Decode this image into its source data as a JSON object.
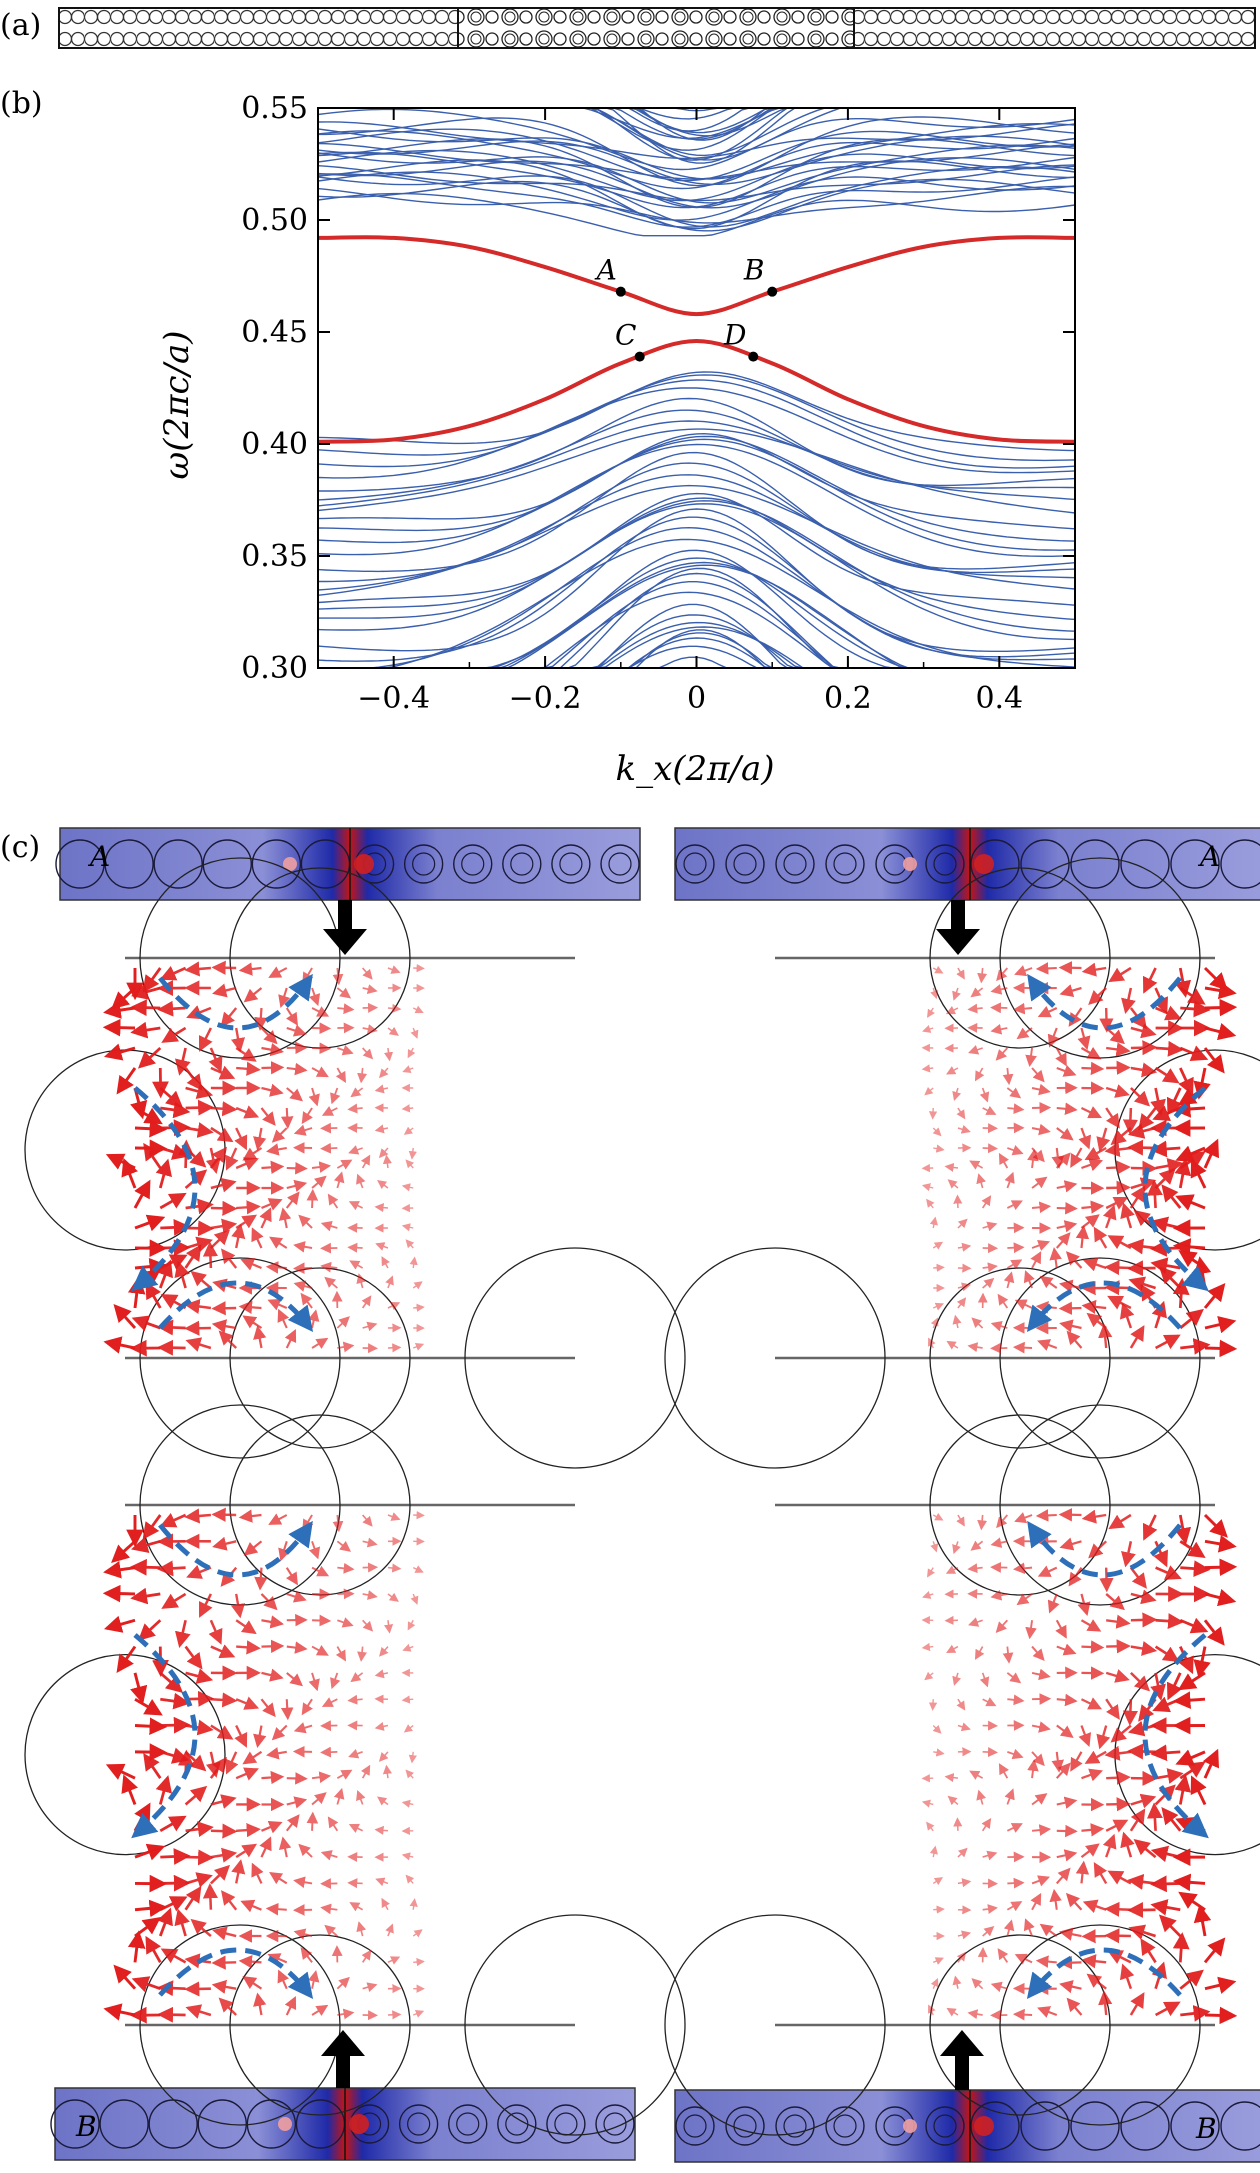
{
  "panels": {
    "a": "(a)",
    "b": "(b)",
    "c": "(c)"
  },
  "chart_data": {
    "type": "line",
    "xlabel": "k_x(2π/a)",
    "ylabel": "ω(2πc/a)",
    "xlim": [
      -0.5,
      0.5
    ],
    "ylim": [
      0.3,
      0.55
    ],
    "xticks": [
      -0.4,
      -0.2,
      0,
      0.2,
      0.4
    ],
    "xtick_labels": [
      "−0.4",
      "−0.2",
      "0",
      "0.2",
      "0.4"
    ],
    "yticks": [
      0.3,
      0.35,
      0.4,
      0.45,
      0.5,
      0.55
    ],
    "ytick_labels": [
      "0.30",
      "0.35",
      "0.40",
      "0.45",
      "0.50",
      "0.55"
    ],
    "series_colors": {
      "bulk": "#3a5fad",
      "edge": "#d42a2a"
    },
    "edge_upper": {
      "x": [
        -0.5,
        -0.4,
        -0.3,
        -0.2,
        -0.1,
        0,
        0.1,
        0.2,
        0.3,
        0.4,
        0.5
      ],
      "y": [
        0.492,
        0.492,
        0.488,
        0.479,
        0.468,
        0.458,
        0.468,
        0.479,
        0.488,
        0.492,
        0.492
      ]
    },
    "edge_lower": {
      "x": [
        -0.5,
        -0.4,
        -0.3,
        -0.2,
        -0.1,
        0,
        0.1,
        0.2,
        0.3,
        0.4,
        0.5
      ],
      "y": [
        0.401,
        0.402,
        0.408,
        0.42,
        0.436,
        0.446,
        0.436,
        0.42,
        0.408,
        0.402,
        0.401
      ]
    },
    "points": [
      {
        "label": "A",
        "x": -0.1,
        "y": 0.468
      },
      {
        "label": "B",
        "x": 0.1,
        "y": 0.468
      },
      {
        "label": "C",
        "x": -0.075,
        "y": 0.439
      },
      {
        "label": "D",
        "x": 0.075,
        "y": 0.439
      }
    ]
  },
  "field_panels": {
    "top_left_label": "A",
    "top_right_label": "A",
    "bottom_left_label": "B",
    "bottom_right_label": "B"
  }
}
